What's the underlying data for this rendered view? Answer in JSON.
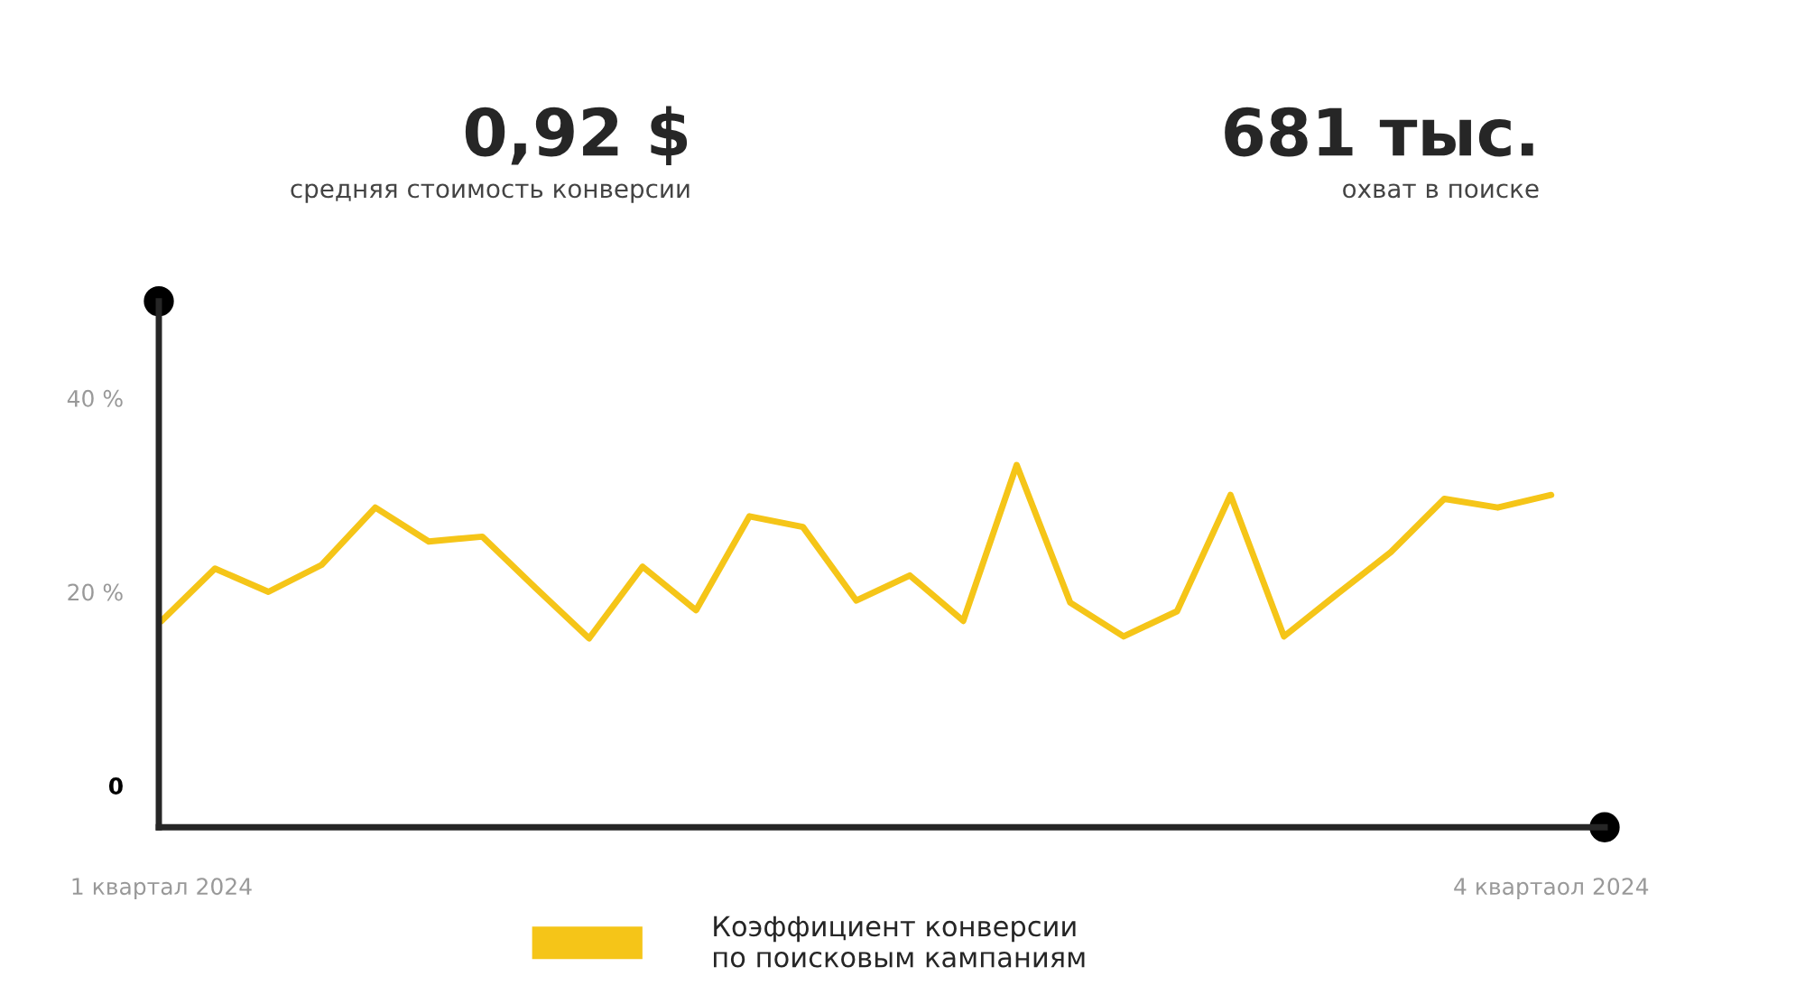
{
  "chart_data": {
    "type": "line",
    "categories": [
      "1 квартал 2024",
      null,
      null,
      null,
      null,
      null,
      null,
      null,
      null,
      null,
      null,
      null,
      null,
      null,
      null,
      null,
      null,
      null,
      null,
      null,
      null,
      null,
      null,
      null,
      null,
      null,
      "4 квартаол 2024"
    ],
    "series": [
      {
        "name": "Коэффициент конверсии\nпо поисковым кампаниям",
        "color": "#f5c518",
        "values": [
          17.0,
          22.4,
          20.0,
          22.8,
          28.7,
          25.2,
          25.7,
          20.4,
          15.2,
          22.6,
          18.1,
          27.8,
          26.7,
          19.1,
          21.7,
          17.0,
          33.1,
          18.9,
          15.4,
          18.0,
          30.0,
          15.4,
          19.8,
          24.1,
          29.6,
          28.7,
          30.0
        ]
      }
    ],
    "ylim": [
      -4.3,
      50
    ],
    "yticks": [
      {
        "value": 0,
        "label": "0"
      },
      {
        "value": 20,
        "label": "20 %"
      },
      {
        "value": 40,
        "label": "40 %"
      }
    ],
    "grid": false,
    "legend": "bottom",
    "marker": "none",
    "line_style": "solid",
    "annotations": [
      "0,92 $",
      "средняя стоимость конверсии",
      "681 тыс.",
      "охват в поиске"
    ]
  }
}
